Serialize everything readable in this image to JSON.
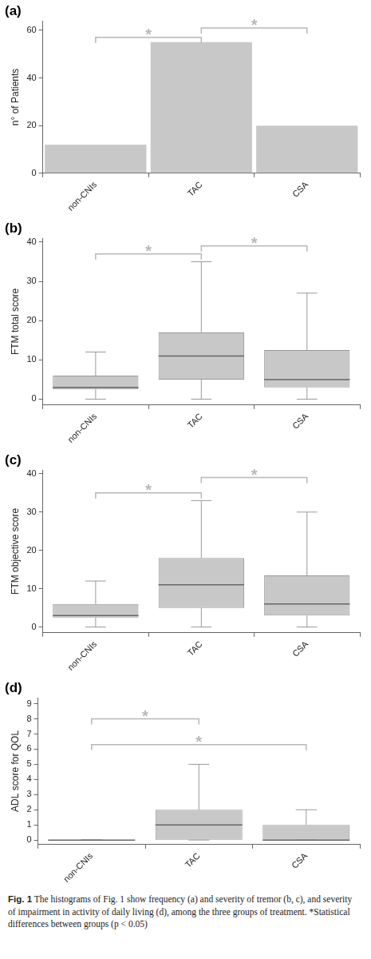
{
  "chart_data": [
    {
      "type": "bar",
      "panel": "(a)",
      "y_label": "n° of Patients",
      "categories": [
        "non-CNIs",
        "TAC",
        "CSA"
      ],
      "values": [
        12,
        55,
        20
      ],
      "color": "#c8c8c8",
      "ylim": [
        0,
        64
      ],
      "yticks": [
        0,
        20,
        40,
        60
      ],
      "grid": false,
      "annotations": [
        {
          "text": "*",
          "from": "non-CNIs",
          "to": "TAC",
          "y": 57
        },
        {
          "text": "*",
          "from": "TAC",
          "to": "CSA",
          "y": 61
        }
      ]
    },
    {
      "type": "box",
      "panel": "(b)",
      "y_label": "FTM total score",
      "categories": [
        "non-CNIs",
        "TAC",
        "CSA"
      ],
      "boxes": [
        {
          "min": 0,
          "q1": 2.5,
          "median": 3,
          "q3": 6,
          "max": 12
        },
        {
          "min": 0,
          "q1": 5,
          "median": 11,
          "q3": 17,
          "max": 35
        },
        {
          "min": 0,
          "q1": 3,
          "median": 5,
          "q3": 12.5,
          "max": 27
        }
      ],
      "color": "#c8c8c8",
      "ylim": [
        -1.5,
        41
      ],
      "yticks": [
        0,
        10,
        20,
        30,
        40
      ],
      "grid": false,
      "annotations": [
        {
          "text": "*",
          "from": "non-CNIs",
          "to": "TAC",
          "y": 37
        },
        {
          "text": "*",
          "from": "TAC",
          "to": "CSA",
          "y": 39
        }
      ]
    },
    {
      "type": "box",
      "panel": "(c)",
      "y_label": "FTM objective score",
      "categories": [
        "non-CNIs",
        "TAC",
        "CSA"
      ],
      "boxes": [
        {
          "min": 0,
          "q1": 2.5,
          "median": 3,
          "q3": 6,
          "max": 12
        },
        {
          "min": 0,
          "q1": 5,
          "median": 11,
          "q3": 18,
          "max": 33
        },
        {
          "min": 0,
          "q1": 3,
          "median": 6,
          "q3": 13.5,
          "max": 30
        }
      ],
      "color": "#c8c8c8",
      "ylim": [
        -1.5,
        41
      ],
      "yticks": [
        0,
        10,
        20,
        30,
        40
      ],
      "grid": false,
      "annotations": [
        {
          "text": "*",
          "from": "non-CNIs",
          "to": "TAC",
          "y": 35
        },
        {
          "text": "*",
          "from": "TAC",
          "to": "CSA",
          "y": 39
        }
      ]
    },
    {
      "type": "box",
      "panel": "(d)",
      "y_label": "ADL score for QOL",
      "categories": [
        "non-CNIs",
        "TAC",
        "CSA"
      ],
      "boxes": [
        {
          "min": 0,
          "q1": 0,
          "median": 0,
          "q3": 0,
          "max": 0
        },
        {
          "min": 0,
          "q1": 0,
          "median": 1,
          "q3": 2,
          "max": 5
        },
        {
          "min": 0,
          "q1": 0,
          "median": 0,
          "q3": 1,
          "max": 2
        }
      ],
      "color": "#c8c8c8",
      "ylim": [
        -0.3,
        9.4
      ],
      "yticks": [
        0,
        1,
        2,
        3,
        4,
        5,
        6,
        7,
        8,
        9
      ],
      "grid": false,
      "annotations": [
        {
          "text": "*",
          "from": "non-CNIs",
          "to": "TAC",
          "y": 8
        },
        {
          "text": "*",
          "from": "non-CNIs",
          "to": "CSA",
          "y": 6.3
        }
      ]
    }
  ],
  "caption_label": "Fig. 1",
  "caption": "The histograms of Fig. 1 show frequency (a) and severity of tremor (b, c), and severity of impairment in activity of daily living (d), among the three groups of treatment. *Statistical differences between groups (p < 0.05)"
}
